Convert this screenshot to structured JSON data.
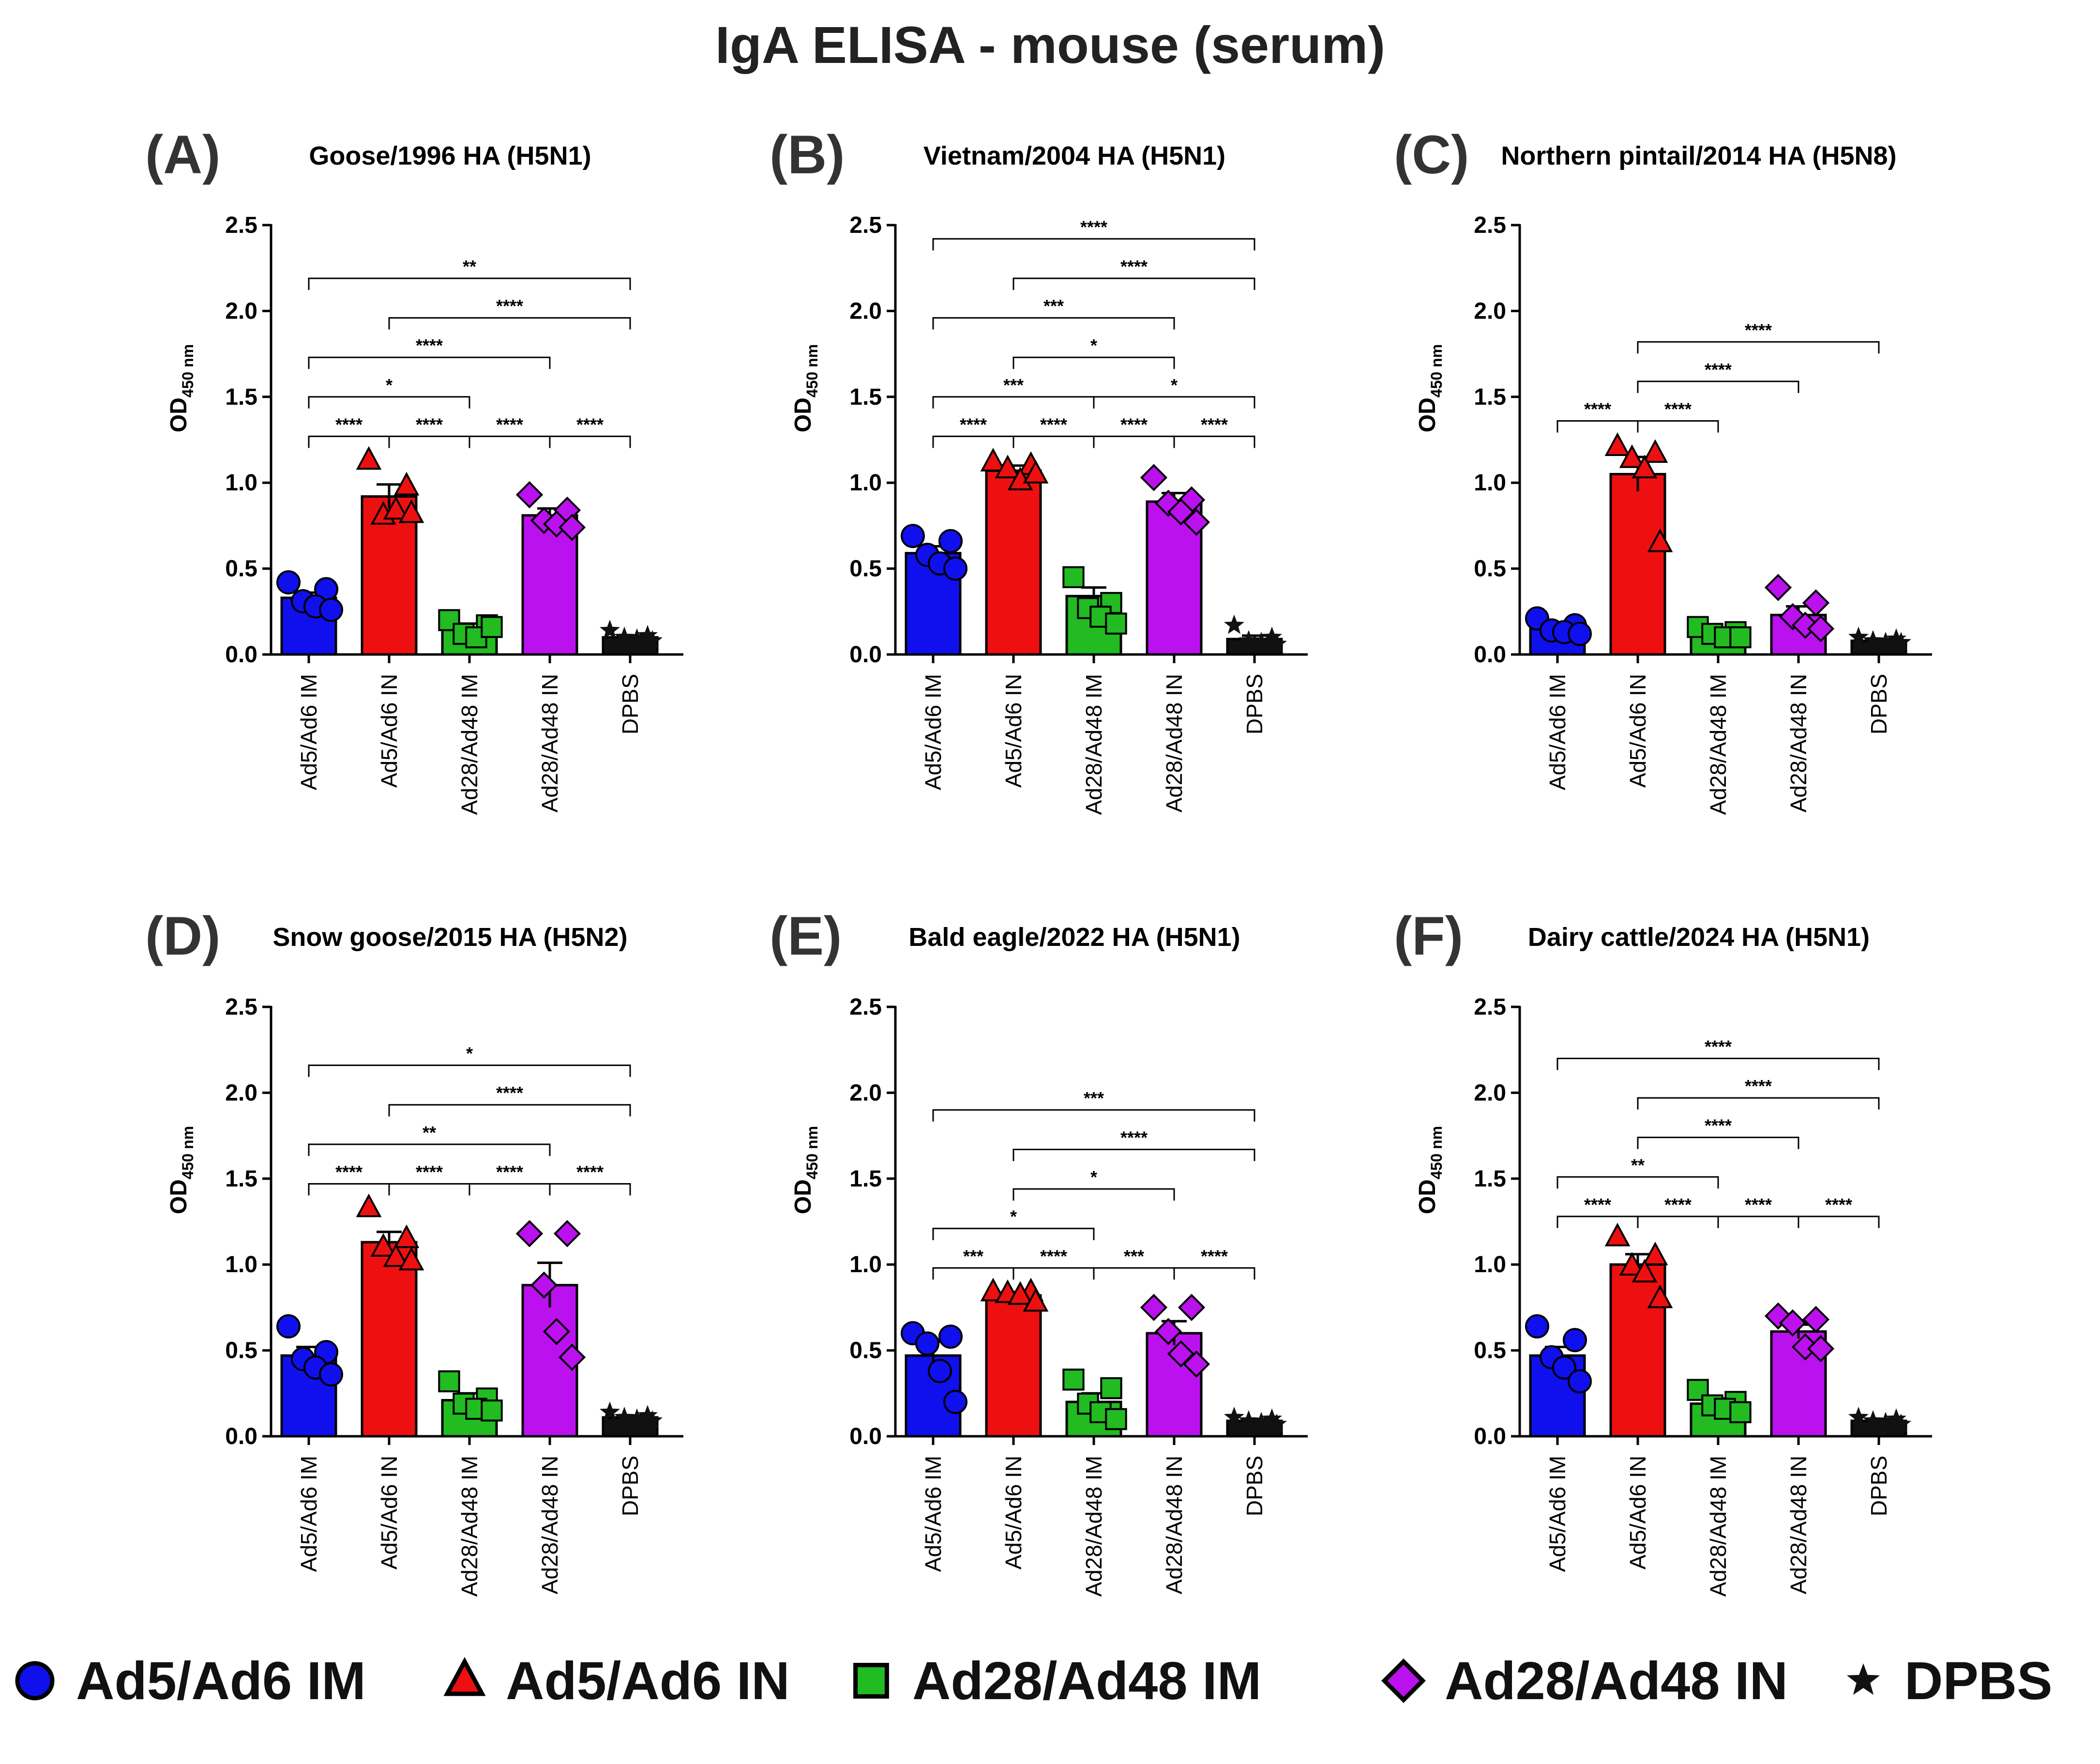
{
  "title": "IgA ELISA - mouse (serum)",
  "legend": [
    {
      "label": "Ad5/Ad6 IM",
      "marker": "circle",
      "color": "#1010ee"
    },
    {
      "label": "Ad5/Ad6 IN",
      "marker": "triangle",
      "color": "#ee1010"
    },
    {
      "label": "Ad28/Ad48 IM",
      "marker": "square",
      "color": "#22bb22"
    },
    {
      "label": "Ad28/Ad48 IN",
      "marker": "diamond",
      "color": "#bb11ee"
    },
    {
      "label": "DPBS",
      "marker": "star",
      "color": "#111111"
    }
  ],
  "chart_data": [
    {
      "panel": "(A)",
      "type": "bar",
      "title": "Goose/1996 HA (H5N1)",
      "ylabel": "OD",
      "ylabel_sub": "450 nm",
      "ylim": [
        0,
        2.5
      ],
      "yticks": [
        "0.0",
        "0.5",
        "1.0",
        "1.5",
        "2.0",
        "2.5"
      ],
      "categories": [
        "Ad5/Ad6 IM",
        "Ad5/Ad6 IN",
        "Ad28/Ad48 IM",
        "Ad28/Ad48 IN",
        "DPBS"
      ],
      "values": [
        0.33,
        0.92,
        0.15,
        0.81,
        0.1
      ],
      "errors": [
        0.03,
        0.07,
        0.03,
        0.04,
        0.01
      ],
      "points": [
        [
          0.42,
          0.38,
          0.31,
          0.28,
          0.26
        ],
        [
          1.13,
          0.98,
          0.81,
          0.84,
          0.82
        ],
        [
          0.2,
          0.17,
          0.12,
          0.1,
          0.16
        ],
        [
          0.93,
          0.84,
          0.78,
          0.76,
          0.74
        ],
        [
          0.14,
          0.11,
          0.1,
          0.09,
          0.08
        ]
      ],
      "significance": [
        {
          "from": 0,
          "to": 1,
          "label": "****",
          "y": 1.27
        },
        {
          "from": 1,
          "to": 2,
          "label": "****",
          "y": 1.27
        },
        {
          "from": 2,
          "to": 3,
          "label": "****",
          "y": 1.27
        },
        {
          "from": 3,
          "to": 4,
          "label": "****",
          "y": 1.27
        },
        {
          "from": 0,
          "to": 2,
          "label": "*",
          "y": 1.5
        },
        {
          "from": 0,
          "to": 3,
          "label": "****",
          "y": 1.73
        },
        {
          "from": 1,
          "to": 4,
          "label": "****",
          "y": 1.96
        },
        {
          "from": 0,
          "to": 4,
          "label": "**",
          "y": 2.19
        }
      ]
    },
    {
      "panel": "(B)",
      "type": "bar",
      "title": "Vietnam/2004 HA (H5N1)",
      "ylabel": "OD",
      "ylabel_sub": "450 nm",
      "ylim": [
        0,
        2.5
      ],
      "yticks": [
        "0.0",
        "0.5",
        "1.0",
        "1.5",
        "2.0",
        "2.5"
      ],
      "categories": [
        "Ad5/Ad6 IM",
        "Ad5/Ad6 IN",
        "Ad28/Ad48 IM",
        "Ad28/Ad48 IN",
        "DPBS"
      ],
      "values": [
        0.59,
        1.07,
        0.34,
        0.89,
        0.09
      ],
      "errors": [
        0.04,
        0.03,
        0.05,
        0.05,
        0.02
      ],
      "points": [
        [
          0.69,
          0.66,
          0.58,
          0.53,
          0.5
        ],
        [
          1.12,
          1.1,
          1.08,
          1.01,
          1.05
        ],
        [
          0.45,
          0.3,
          0.27,
          0.22,
          0.18
        ],
        [
          1.03,
          0.9,
          0.88,
          0.83,
          0.77
        ],
        [
          0.17,
          0.1,
          0.08,
          0.07,
          0.06
        ]
      ],
      "significance": [
        {
          "from": 0,
          "to": 1,
          "label": "****",
          "y": 1.27
        },
        {
          "from": 1,
          "to": 2,
          "label": "****",
          "y": 1.27
        },
        {
          "from": 2,
          "to": 3,
          "label": "****",
          "y": 1.27
        },
        {
          "from": 3,
          "to": 4,
          "label": "****",
          "y": 1.27
        },
        {
          "from": 0,
          "to": 2,
          "label": "***",
          "y": 1.5
        },
        {
          "from": 2,
          "to": 4,
          "label": "*",
          "y": 1.5
        },
        {
          "from": 1,
          "to": 3,
          "label": "*",
          "y": 1.73
        },
        {
          "from": 0,
          "to": 3,
          "label": "***",
          "y": 1.96
        },
        {
          "from": 1,
          "to": 4,
          "label": "****",
          "y": 2.19
        },
        {
          "from": 0,
          "to": 4,
          "label": "****",
          "y": 2.42
        }
      ]
    },
    {
      "panel": "(C)",
      "type": "bar",
      "title": "Northern pintail/2014 HA (H5N8)",
      "ylabel": "OD",
      "ylabel_sub": "450 nm",
      "ylim": [
        0,
        2.5
      ],
      "yticks": [
        "0.0",
        "0.5",
        "1.0",
        "1.5",
        "2.0",
        "2.5"
      ],
      "categories": [
        "Ad5/Ad6 IM",
        "Ad5/Ad6 IN",
        "Ad28/Ad48 IM",
        "Ad28/Ad48 IN",
        "DPBS"
      ],
      "values": [
        0.15,
        1.05,
        0.12,
        0.23,
        0.08
      ],
      "errors": [
        0.02,
        0.1,
        0.02,
        0.05,
        0.01
      ],
      "points": [
        [
          0.21,
          0.17,
          0.14,
          0.13,
          0.12
        ],
        [
          1.21,
          1.17,
          1.14,
          1.08,
          0.65
        ],
        [
          0.16,
          0.13,
          0.12,
          0.1,
          0.1
        ],
        [
          0.39,
          0.3,
          0.22,
          0.17,
          0.15
        ],
        [
          0.1,
          0.09,
          0.08,
          0.07,
          0.07
        ]
      ],
      "significance": [
        {
          "from": 0,
          "to": 1,
          "label": "****",
          "y": 1.36
        },
        {
          "from": 1,
          "to": 2,
          "label": "****",
          "y": 1.36
        },
        {
          "from": 1,
          "to": 3,
          "label": "****",
          "y": 1.59
        },
        {
          "from": 1,
          "to": 4,
          "label": "****",
          "y": 1.82
        }
      ]
    },
    {
      "panel": "(D)",
      "type": "bar",
      "title": "Snow goose/2015 HA (H5N2)",
      "ylabel": "OD",
      "ylabel_sub": "450 nm",
      "ylim": [
        0,
        2.5
      ],
      "yticks": [
        "0.0",
        "0.5",
        "1.0",
        "1.5",
        "2.0",
        "2.5"
      ],
      "categories": [
        "Ad5/Ad6 IM",
        "Ad5/Ad6 IN",
        "Ad28/Ad48 IM",
        "Ad28/Ad48 IN",
        "DPBS"
      ],
      "values": [
        0.47,
        1.13,
        0.21,
        0.88,
        0.11
      ],
      "errors": [
        0.05,
        0.06,
        0.04,
        0.13,
        0.01
      ],
      "points": [
        [
          0.64,
          0.49,
          0.45,
          0.4,
          0.36
        ],
        [
          1.33,
          1.15,
          1.1,
          1.04,
          1.02
        ],
        [
          0.32,
          0.22,
          0.19,
          0.16,
          0.15
        ],
        [
          1.18,
          1.18,
          0.88,
          0.61,
          0.46
        ],
        [
          0.14,
          0.12,
          0.11,
          0.1,
          0.09
        ]
      ],
      "significance": [
        {
          "from": 0,
          "to": 1,
          "label": "****",
          "y": 1.47
        },
        {
          "from": 1,
          "to": 2,
          "label": "****",
          "y": 1.47
        },
        {
          "from": 2,
          "to": 3,
          "label": "****",
          "y": 1.47
        },
        {
          "from": 3,
          "to": 4,
          "label": "****",
          "y": 1.47
        },
        {
          "from": 0,
          "to": 3,
          "label": "**",
          "y": 1.7
        },
        {
          "from": 1,
          "to": 4,
          "label": "****",
          "y": 1.93
        },
        {
          "from": 0,
          "to": 4,
          "label": "*",
          "y": 2.16
        }
      ]
    },
    {
      "panel": "(E)",
      "type": "bar",
      "title": "Bald eagle/2022 HA (H5N1)",
      "ylabel": "OD",
      "ylabel_sub": "450 nm",
      "ylim": [
        0,
        2.5
      ],
      "yticks": [
        "0.0",
        "0.5",
        "1.0",
        "1.5",
        "2.0",
        "2.5"
      ],
      "categories": [
        "Ad5/Ad6 IM",
        "Ad5/Ad6 IN",
        "Ad28/Ad48 IM",
        "Ad28/Ad48 IN",
        "DPBS"
      ],
      "values": [
        0.47,
        0.82,
        0.2,
        0.6,
        0.09
      ],
      "errors": [
        0.08,
        0.02,
        0.05,
        0.07,
        0.01
      ],
      "points": [
        [
          0.6,
          0.58,
          0.54,
          0.38,
          0.2
        ],
        [
          0.84,
          0.84,
          0.83,
          0.82,
          0.78
        ],
        [
          0.33,
          0.28,
          0.19,
          0.14,
          0.1
        ],
        [
          0.75,
          0.75,
          0.61,
          0.48,
          0.42
        ],
        [
          0.11,
          0.1,
          0.09,
          0.08,
          0.07
        ]
      ],
      "significance": [
        {
          "from": 0,
          "to": 1,
          "label": "***",
          "y": 0.98
        },
        {
          "from": 1,
          "to": 2,
          "label": "****",
          "y": 0.98
        },
        {
          "from": 2,
          "to": 3,
          "label": "***",
          "y": 0.98
        },
        {
          "from": 3,
          "to": 4,
          "label": "****",
          "y": 0.98
        },
        {
          "from": 0,
          "to": 2,
          "label": "*",
          "y": 1.21
        },
        {
          "from": 1,
          "to": 3,
          "label": "*",
          "y": 1.44
        },
        {
          "from": 1,
          "to": 4,
          "label": "****",
          "y": 1.67
        },
        {
          "from": 0,
          "to": 4,
          "label": "***",
          "y": 1.9
        }
      ]
    },
    {
      "panel": "(F)",
      "type": "bar",
      "title": "Dairy cattle/2024 HA (H5N1)",
      "ylabel": "OD",
      "ylabel_sub": "450 nm",
      "ylim": [
        0,
        2.5
      ],
      "yticks": [
        "0.0",
        "0.5",
        "1.0",
        "1.5",
        "2.0",
        "2.5"
      ],
      "categories": [
        "Ad5/Ad6 IM",
        "Ad5/Ad6 IN",
        "Ad28/Ad48 IM",
        "Ad28/Ad48 IN",
        "DPBS"
      ],
      "values": [
        0.47,
        1.0,
        0.19,
        0.61,
        0.09
      ],
      "errors": [
        0.05,
        0.06,
        0.03,
        0.04,
        0.01
      ],
      "points": [
        [
          0.64,
          0.56,
          0.46,
          0.4,
          0.32
        ],
        [
          1.16,
          1.05,
          0.99,
          0.95,
          0.8
        ],
        [
          0.27,
          0.2,
          0.18,
          0.16,
          0.14
        ],
        [
          0.7,
          0.68,
          0.66,
          0.52,
          0.51
        ],
        [
          0.11,
          0.1,
          0.09,
          0.08,
          0.07
        ]
      ],
      "significance": [
        {
          "from": 0,
          "to": 1,
          "label": "****",
          "y": 1.28
        },
        {
          "from": 1,
          "to": 2,
          "label": "****",
          "y": 1.28
        },
        {
          "from": 2,
          "to": 3,
          "label": "****",
          "y": 1.28
        },
        {
          "from": 3,
          "to": 4,
          "label": "****",
          "y": 1.28
        },
        {
          "from": 0,
          "to": 2,
          "label": "**",
          "y": 1.51
        },
        {
          "from": 1,
          "to": 3,
          "label": "****",
          "y": 1.74
        },
        {
          "from": 1,
          "to": 4,
          "label": "****",
          "y": 1.97
        },
        {
          "from": 0,
          "to": 4,
          "label": "****",
          "y": 2.2
        }
      ]
    }
  ]
}
